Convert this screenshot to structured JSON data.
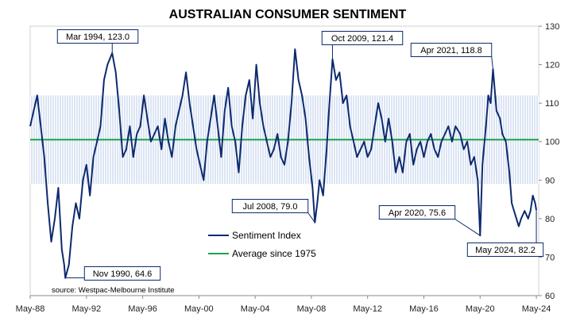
{
  "chart_data": {
    "type": "line",
    "title": "AUSTRALIAN CONSUMER SENTIMENT",
    "source": "source: Westpac-Melbourne Institute",
    "ylim": [
      60,
      130
    ],
    "y_ticks": [
      60,
      70,
      80,
      90,
      100,
      110,
      120,
      130
    ],
    "xlim": [
      1988.333,
      2024.5
    ],
    "x_ticks": [
      {
        "label": "May-88",
        "value": 1988.333
      },
      {
        "label": "May-92",
        "value": 1992.333
      },
      {
        "label": "May-96",
        "value": 1996.333
      },
      {
        "label": "May-00",
        "value": 2000.333
      },
      {
        "label": "May-04",
        "value": 2004.333
      },
      {
        "label": "May-08",
        "value": 2008.333
      },
      {
        "label": "May-12",
        "value": 2012.333
      },
      {
        "label": "May-16",
        "value": 2016.333
      },
      {
        "label": "May-20",
        "value": 2020.333
      },
      {
        "label": "May-24",
        "value": 2024.333
      }
    ],
    "band": {
      "y_low": 89,
      "y_high": 112
    },
    "average_line": {
      "name": "Average since 1975",
      "value": 100.5,
      "color": "#1aa34a"
    },
    "legend": {
      "position": "center-bottom",
      "entries": [
        "Sentiment Index",
        "Average since 1975"
      ]
    },
    "series": [
      {
        "name": "Sentiment Index",
        "color": "#0d2a6e",
        "points": [
          [
            1988.333,
            104
          ],
          [
            1988.583,
            108
          ],
          [
            1988.833,
            112
          ],
          [
            1989.083,
            104
          ],
          [
            1989.333,
            96
          ],
          [
            1989.583,
            84
          ],
          [
            1989.833,
            74
          ],
          [
            1990.083,
            80
          ],
          [
            1990.333,
            88
          ],
          [
            1990.583,
            72
          ],
          [
            1990.75,
            68
          ],
          [
            1990.833,
            64.6
          ],
          [
            1991.083,
            68
          ],
          [
            1991.333,
            78
          ],
          [
            1991.583,
            84
          ],
          [
            1991.833,
            80
          ],
          [
            1992.083,
            90
          ],
          [
            1992.333,
            94
          ],
          [
            1992.583,
            86
          ],
          [
            1992.833,
            96
          ],
          [
            1993.083,
            100
          ],
          [
            1993.333,
            104
          ],
          [
            1993.583,
            116
          ],
          [
            1993.833,
            120
          ],
          [
            1994.167,
            123
          ],
          [
            1994.417,
            118
          ],
          [
            1994.667,
            108
          ],
          [
            1994.917,
            96
          ],
          [
            1995.167,
            98
          ],
          [
            1995.417,
            104
          ],
          [
            1995.667,
            96
          ],
          [
            1995.917,
            102
          ],
          [
            1996.167,
            104
          ],
          [
            1996.417,
            112
          ],
          [
            1996.667,
            106
          ],
          [
            1996.917,
            100
          ],
          [
            1997.167,
            102
          ],
          [
            1997.417,
            104
          ],
          [
            1997.667,
            98
          ],
          [
            1997.917,
            106
          ],
          [
            1998.167,
            100
          ],
          [
            1998.417,
            96
          ],
          [
            1998.667,
            104
          ],
          [
            1998.917,
            108
          ],
          [
            1999.167,
            112
          ],
          [
            1999.417,
            118
          ],
          [
            1999.667,
            110
          ],
          [
            1999.917,
            104
          ],
          [
            2000.167,
            98
          ],
          [
            2000.417,
            94
          ],
          [
            2000.667,
            90
          ],
          [
            2000.917,
            100
          ],
          [
            2001.167,
            106
          ],
          [
            2001.417,
            112
          ],
          [
            2001.667,
            104
          ],
          [
            2001.917,
            96
          ],
          [
            2002.167,
            108
          ],
          [
            2002.417,
            114
          ],
          [
            2002.667,
            104
          ],
          [
            2002.917,
            100
          ],
          [
            2003.167,
            92
          ],
          [
            2003.417,
            104
          ],
          [
            2003.667,
            112
          ],
          [
            2003.917,
            116
          ],
          [
            2004.167,
            106
          ],
          [
            2004.417,
            120
          ],
          [
            2004.667,
            110
          ],
          [
            2004.917,
            104
          ],
          [
            2005.167,
            100
          ],
          [
            2005.417,
            96
          ],
          [
            2005.667,
            98
          ],
          [
            2005.917,
            102
          ],
          [
            2006.167,
            96
          ],
          [
            2006.417,
            94
          ],
          [
            2006.667,
            100
          ],
          [
            2006.917,
            110
          ],
          [
            2007.167,
            124
          ],
          [
            2007.417,
            116
          ],
          [
            2007.667,
            112
          ],
          [
            2007.917,
            106
          ],
          [
            2008.167,
            96
          ],
          [
            2008.417,
            88
          ],
          [
            2008.583,
            79
          ],
          [
            2008.75,
            84
          ],
          [
            2008.917,
            90
          ],
          [
            2009.167,
            86
          ],
          [
            2009.417,
            98
          ],
          [
            2009.583,
            108
          ],
          [
            2009.833,
            121.4
          ],
          [
            2010.083,
            116
          ],
          [
            2010.333,
            118
          ],
          [
            2010.583,
            110
          ],
          [
            2010.833,
            112
          ],
          [
            2011.083,
            104
          ],
          [
            2011.333,
            100
          ],
          [
            2011.583,
            96
          ],
          [
            2011.833,
            98
          ],
          [
            2012.083,
            100
          ],
          [
            2012.333,
            96
          ],
          [
            2012.583,
            98
          ],
          [
            2012.833,
            104
          ],
          [
            2013.083,
            110
          ],
          [
            2013.333,
            106
          ],
          [
            2013.583,
            100
          ],
          [
            2013.833,
            106
          ],
          [
            2014.083,
            100
          ],
          [
            2014.333,
            92
          ],
          [
            2014.583,
            96
          ],
          [
            2014.833,
            92
          ],
          [
            2015.083,
            100
          ],
          [
            2015.333,
            102
          ],
          [
            2015.583,
            94
          ],
          [
            2015.833,
            98
          ],
          [
            2016.083,
            100
          ],
          [
            2016.333,
            96
          ],
          [
            2016.583,
            100
          ],
          [
            2016.833,
            102
          ],
          [
            2017.083,
            98
          ],
          [
            2017.333,
            96
          ],
          [
            2017.583,
            100
          ],
          [
            2017.833,
            102
          ],
          [
            2018.083,
            104
          ],
          [
            2018.333,
            100
          ],
          [
            2018.583,
            104
          ],
          [
            2018.917,
            102
          ],
          [
            2019.167,
            98
          ],
          [
            2019.417,
            100
          ],
          [
            2019.667,
            94
          ],
          [
            2019.917,
            96
          ],
          [
            2020.167,
            90
          ],
          [
            2020.333,
            75.6
          ],
          [
            2020.5,
            94
          ],
          [
            2020.75,
            104
          ],
          [
            2020.917,
            112
          ],
          [
            2021.083,
            110
          ],
          [
            2021.25,
            118.8
          ],
          [
            2021.5,
            108
          ],
          [
            2021.75,
            106
          ],
          [
            2021.917,
            102
          ],
          [
            2022.167,
            100
          ],
          [
            2022.417,
            92
          ],
          [
            2022.583,
            84
          ],
          [
            2022.75,
            82
          ],
          [
            2022.917,
            80
          ],
          [
            2023.083,
            78
          ],
          [
            2023.25,
            80
          ],
          [
            2023.5,
            82
          ],
          [
            2023.75,
            80
          ],
          [
            2023.917,
            82
          ],
          [
            2024.083,
            86
          ],
          [
            2024.25,
            84
          ],
          [
            2024.333,
            82.2
          ]
        ]
      }
    ],
    "annotations": [
      {
        "text": "Mar 1994, 123.0",
        "x": 1994.167,
        "y": 123.0
      },
      {
        "text": "Nov 1990, 64.6",
        "x": 1990.833,
        "y": 64.6
      },
      {
        "text": "Oct 2009, 121.4",
        "x": 2009.833,
        "y": 121.4
      },
      {
        "text": "Jul 2008, 79.0",
        "x": 2008.583,
        "y": 79.0
      },
      {
        "text": "Apr 2021, 118.8",
        "x": 2021.25,
        "y": 118.8
      },
      {
        "text": "Apr 2020, 75.6",
        "x": 2020.333,
        "y": 75.6
      },
      {
        "text": "May 2024, 82.2",
        "x": 2024.333,
        "y": 82.2
      }
    ]
  }
}
